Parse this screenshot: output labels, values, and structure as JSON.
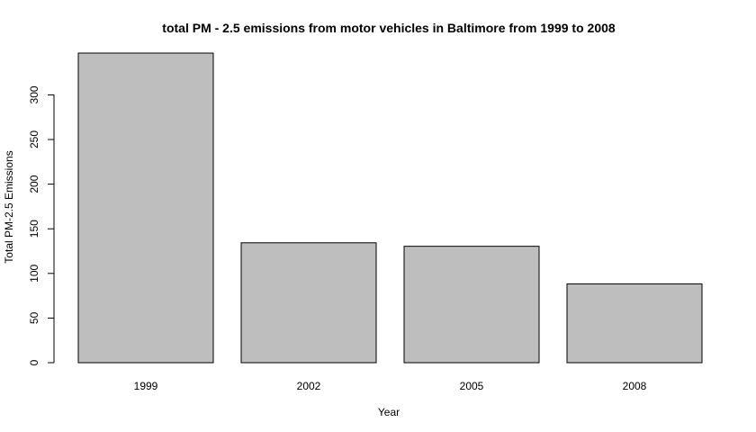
{
  "chart_data": {
    "type": "bar",
    "title": "total PM - 2.5 emissions from motor vehicles in Baltimore from 1999 to 2008",
    "xlabel": "Year",
    "ylabel": "Total PM-2.5 Emissions",
    "categories": [
      "1999",
      "2002",
      "2005",
      "2008"
    ],
    "values": [
      346.8,
      134.3,
      130.4,
      88.3
    ],
    "ylim": [
      0,
      346.8
    ],
    "yticks": [
      0,
      50,
      100,
      150,
      200,
      250,
      300
    ],
    "bar_color": "#bebebe",
    "grid": false,
    "legend": "none"
  }
}
